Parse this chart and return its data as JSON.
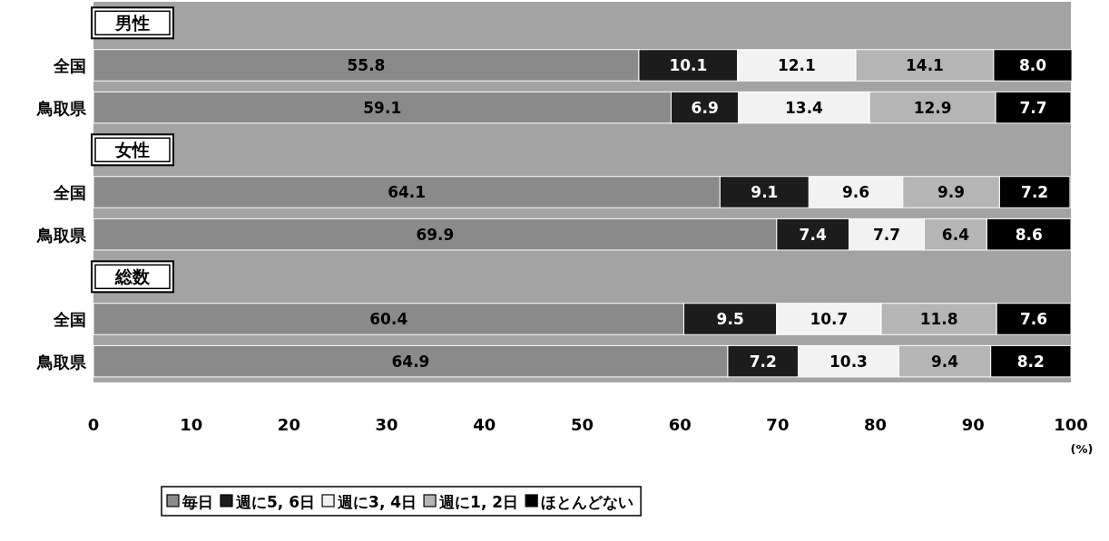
{
  "chart_data": {
    "type": "bar",
    "orientation": "horizontal",
    "stacked": true,
    "xlim": [
      0,
      100
    ],
    "xticks": [
      0,
      10,
      20,
      30,
      40,
      50,
      60,
      70,
      80,
      90,
      100
    ],
    "xlabel": "(%)",
    "legend": "bottom",
    "categories": [
      "男性",
      "全国",
      "鳥取県",
      "女性",
      "全国",
      "鳥取県",
      "総数",
      "全国",
      "鳥取県"
    ],
    "series": [
      {
        "name": "毎日",
        "color": "#8a8a8a",
        "values": [
          null,
          55.8,
          59.1,
          null,
          64.1,
          69.9,
          null,
          60.4,
          64.9
        ],
        "value_labels": [
          null,
          "55.8",
          "59.1",
          null,
          "64.1",
          "69.9",
          null,
          "60.4",
          "64.9"
        ]
      },
      {
        "name": "週に5, 6日",
        "color": "#1c1c1c",
        "values": [
          null,
          10.1,
          6.9,
          null,
          9.1,
          7.4,
          null,
          9.5,
          7.2
        ],
        "value_labels": [
          null,
          "10.1",
          "6.9",
          null,
          "9.1",
          "7.4",
          null,
          "9.5",
          "7.2"
        ]
      },
      {
        "name": "週に3, 4日",
        "color": "#f2f2f2",
        "values": [
          null,
          12.1,
          13.4,
          null,
          9.6,
          7.7,
          null,
          10.7,
          10.3
        ],
        "value_labels": [
          null,
          "12.1",
          "13.4",
          null,
          "9.6",
          "7.7",
          null,
          "10.7",
          "10.3"
        ]
      },
      {
        "name": "週に1, 2日",
        "color": "#b5b5b5",
        "values": [
          null,
          14.1,
          12.9,
          null,
          9.9,
          6.4,
          null,
          11.8,
          9.4
        ],
        "value_labels": [
          null,
          "14.1",
          "12.9",
          null,
          "9.9",
          "6.4",
          null,
          "11.8",
          "9.4"
        ]
      },
      {
        "name": "ほとんどない",
        "color": "#000000",
        "values": [
          null,
          8.0,
          7.7,
          null,
          7.2,
          8.6,
          null,
          7.6,
          8.2
        ],
        "value_labels": [
          null,
          "8.0",
          "7.7",
          null,
          "7.2",
          "8.6",
          null,
          "7.6",
          "8.2"
        ]
      }
    ]
  }
}
